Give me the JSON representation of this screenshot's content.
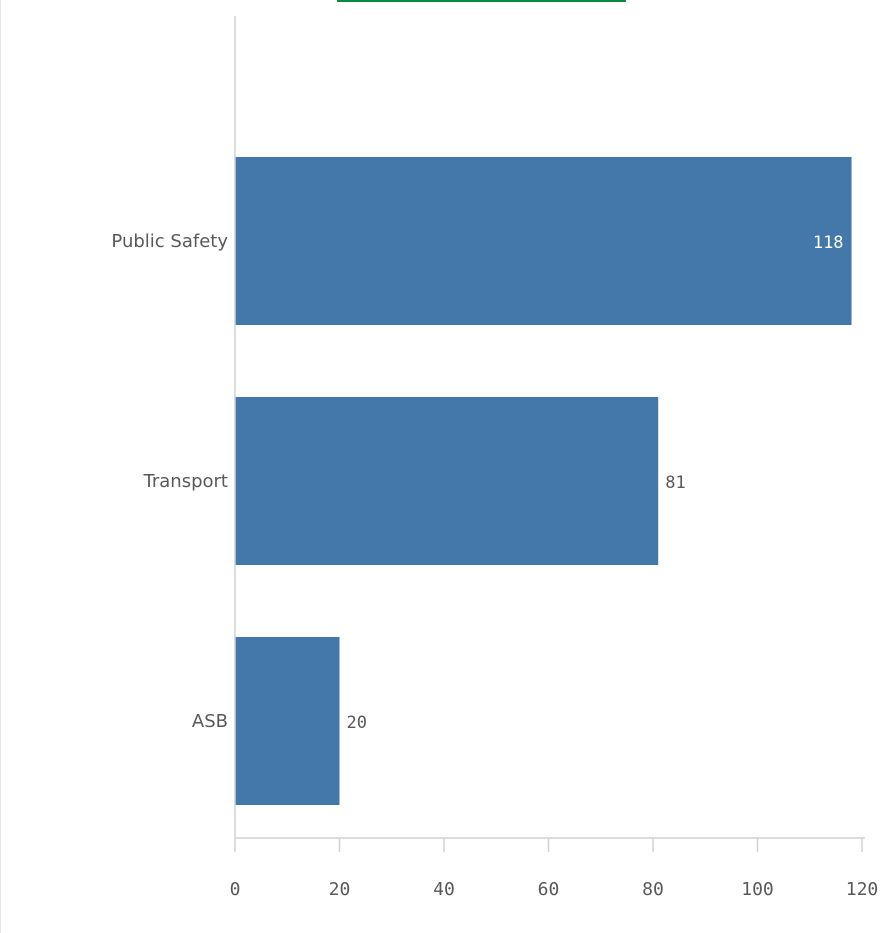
{
  "colors": {
    "bar": "#4477aa",
    "axis": "#d2d2d2",
    "label": "#595959",
    "inside_label": "#ffffff",
    "accent": "#0a8a3c"
  },
  "chart_data": {
    "type": "bar",
    "orientation": "horizontal",
    "categories": [
      "Public Safety",
      "Transport",
      "ASB"
    ],
    "values": [
      118,
      81,
      20
    ],
    "data_labels": [
      "118",
      "81",
      "20"
    ],
    "xlim": [
      0,
      120
    ],
    "x_ticks": [
      0,
      20,
      40,
      60,
      80,
      100,
      120
    ],
    "x_tick_labels": [
      "0",
      "20",
      "40",
      "60",
      "80",
      "100",
      "120"
    ],
    "title": "",
    "xlabel": "",
    "ylabel": "",
    "grid": false,
    "legend": "none"
  }
}
